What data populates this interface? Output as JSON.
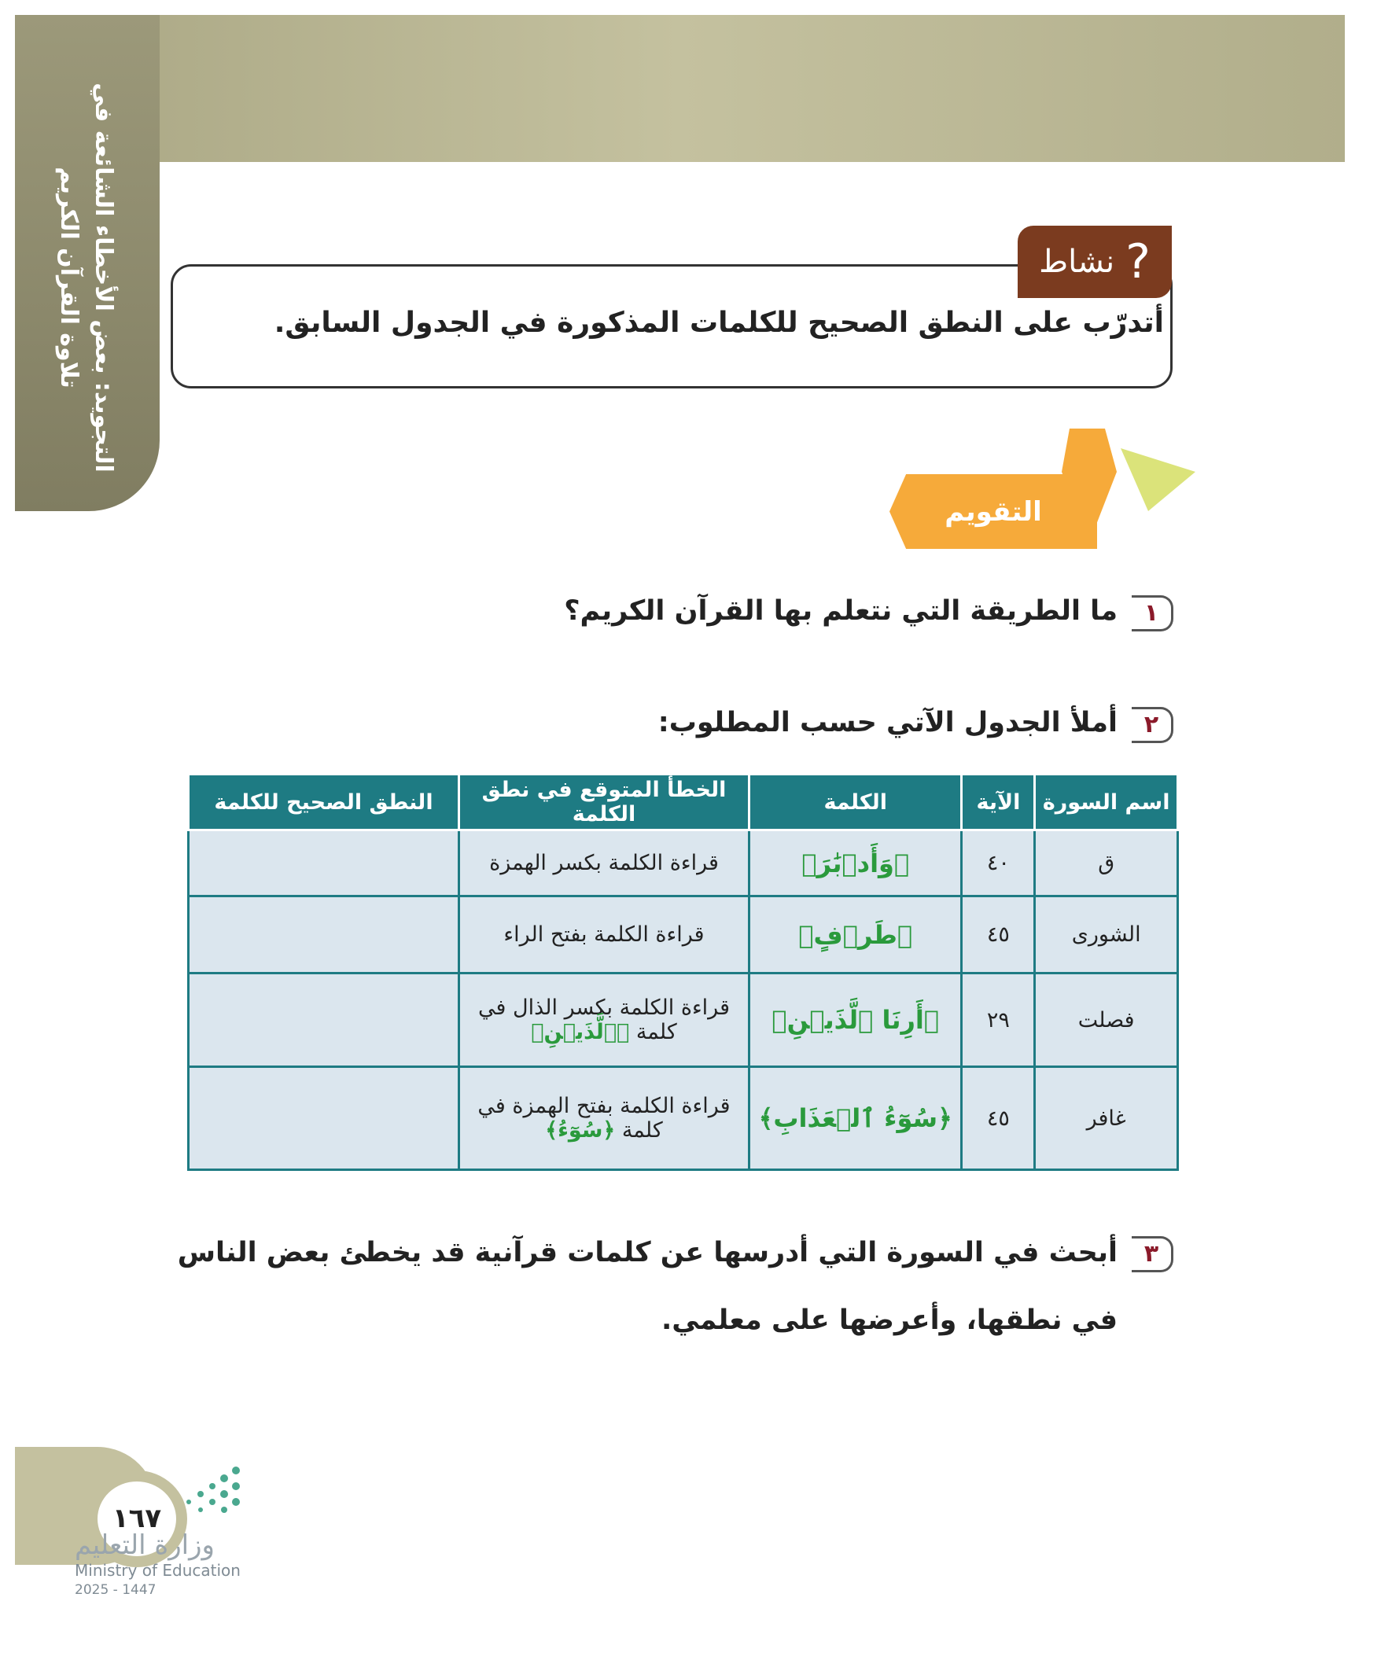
{
  "header": {
    "side_title": [
      "التجويد: بعض الأخطاء الشائعة في",
      "تلاوة القرآن الكريم"
    ]
  },
  "activity": {
    "label": "نشاط",
    "text": "أتدرّب على النطق الصحيح للكلمات المذكورة في الجدول السابق."
  },
  "evaluation": {
    "label": "التقويم"
  },
  "questions": [
    {
      "number": "١",
      "text": "ما الطريقة التي نتعلم بها القرآن الكريم؟"
    },
    {
      "number": "٢",
      "text": "أملأ الجدول الآتي حسب المطلوب:"
    },
    {
      "number": "٣",
      "text": "أبحث في السورة التي أدرسها عن كلمات قرآنية قد يخطئ بعض الناس في نطقها، وأعرضها على معلمي."
    }
  ],
  "table": {
    "headers": [
      "اسم السورة",
      "الآية",
      "الكلمة",
      "الخطأ المتوقع في نطق الكلمة",
      "النطق الصحيح للكلمة"
    ],
    "rows": [
      {
        "surah": "ق",
        "ayah": "٤٠",
        "word": "﴿وَأَدۡبَٰرَ﴾",
        "error": "قراءة الكلمة بكسر الهمزة"
      },
      {
        "surah": "الشورى",
        "ayah": "٤٥",
        "word": "﴿طَرۡفٍ﴾",
        "error": "قراءة الكلمة بفتح الراء"
      },
      {
        "surah": "فصلت",
        "ayah": "٢٩",
        "word": "﴿أَرِنَا ٱلَّذَيۡنِ﴾",
        "error": "قراءة الكلمة بكسر الذال في كلمة",
        "error_word": "﴿ٱلَّذَيۡنِ﴾"
      },
      {
        "surah": "غافر",
        "ayah": "٤٥",
        "word": "﴿سُوٓءُ ٱلۡعَذَابِ﴾",
        "error": "قراءة الكلمة بفتح الهمزة في كلمة",
        "error_word": "﴿سُوٓءُ﴾"
      }
    ]
  },
  "footer": {
    "page_number": "١٦٧",
    "ministry_ar": "وزارة التعليم",
    "ministry_en": "Ministry of Education",
    "years": "2025 - 1447"
  }
}
